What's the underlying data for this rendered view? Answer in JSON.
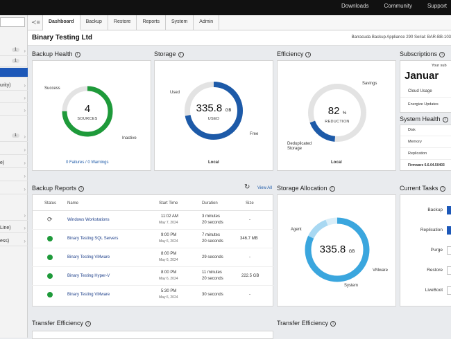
{
  "topbar": {
    "links": [
      "Downloads",
      "Community",
      "Support"
    ]
  },
  "sidebar": {
    "items": [
      {
        "label": "",
        "badge": "1"
      },
      {
        "label": "",
        "badge": "1"
      },
      {
        "label": "",
        "badge": ""
      },
      {
        "label": "urity)",
        "badge": ""
      },
      {
        "label": "",
        "badge": ""
      },
      {
        "label": "",
        "badge": ""
      },
      {
        "label": "",
        "badge": "1"
      },
      {
        "label": "",
        "badge": ""
      },
      {
        "label": "e)",
        "badge": ""
      },
      {
        "label": "",
        "badge": ""
      },
      {
        "label": "",
        "badge": ""
      },
      {
        "label": "",
        "badge": ""
      },
      {
        "label": "Line)",
        "badge": ""
      },
      {
        "label": "ess)",
        "badge": ""
      }
    ]
  },
  "tabs": [
    "Dashboard",
    "Backup",
    "Restore",
    "Reports",
    "System",
    "Admin"
  ],
  "page": {
    "title": "Binary Testing Ltd",
    "device": "Barracuda Backup Appliance 290  Serial:  BAR-BB-103"
  },
  "backup_health": {
    "title": "Backup Health",
    "value": "4",
    "sublabel": "SOURCES",
    "success_label": "Success",
    "inactive_label": "Inactive",
    "summary": "0 Failures / 0 Warnings",
    "success_fraction": 0.75,
    "color": "#1e9a3a"
  },
  "storage": {
    "title": "Storage",
    "value": "335.8",
    "unit": "GB",
    "sublabel": "USED",
    "used_label": "Used",
    "free_label": "Free",
    "footer": "Local",
    "used_fraction": 0.72,
    "color": "#1d5aa8"
  },
  "efficiency": {
    "title": "Efficiency",
    "value": "82",
    "unit": "%",
    "sublabel": "REDUCTION",
    "savings_label": "Savings",
    "dedup_label_1": "Deduplicated",
    "dedup_label_2": "Storage",
    "footer": "Local",
    "dedup_fraction": 0.18,
    "color": "#1d5aa8"
  },
  "subscriptions": {
    "title": "Subscriptions",
    "caption": "Your sub",
    "month": "Januar",
    "items": [
      "Cloud Usage",
      "Energize Updates"
    ]
  },
  "system_health": {
    "title": "System Health",
    "items": [
      "Disk",
      "Memory",
      "Replication",
      "Firmware 6.6.04.50403"
    ]
  },
  "backup_reports": {
    "title": "Backup Reports",
    "view_all": "View All",
    "columns": [
      "Status",
      "Name",
      "Start Time",
      "Duration",
      "Size"
    ],
    "rows": [
      {
        "status": "running",
        "name": "Windows Workstations",
        "time": "11:02 AM",
        "date": "May 7, 2024",
        "duration_1": "3 minutes",
        "duration_2": "20 seconds",
        "size": "-"
      },
      {
        "status": "ok",
        "name": "Binary Testing SQL Servers",
        "time": "9:00 PM",
        "date": "May 6, 2024",
        "duration_1": "7 minutes",
        "duration_2": "20 seconds",
        "size": "346.7 MB"
      },
      {
        "status": "ok",
        "name": "Binary Testing VMware",
        "time": "8:00 PM",
        "date": "May 6, 2024",
        "duration_1": "29 seconds",
        "duration_2": "",
        "size": "-"
      },
      {
        "status": "ok",
        "name": "Binary Testing Hyper-V",
        "time": "8:00 PM",
        "date": "May 6, 2024",
        "duration_1": "11 minutes",
        "duration_2": "20 seconds",
        "size": "222.5 GB"
      },
      {
        "status": "ok",
        "name": "Binary Testing VMware",
        "time": "5:30 PM",
        "date": "May 6, 2024",
        "duration_1": "30 seconds",
        "duration_2": "",
        "size": "-"
      }
    ]
  },
  "storage_allocation": {
    "title": "Storage Allocation",
    "value": "335.8",
    "unit": "GB",
    "agent_label": "Agent",
    "vmware_label": "VMware",
    "system_label": "System",
    "agent_fraction": 0.82,
    "vmware_fraction": 0.12,
    "system_fraction": 0.06,
    "color_agent": "#3aa6de",
    "color_vmware": "#a8d8f2",
    "color_system": "#d9eef9"
  },
  "current_tasks": {
    "title": "Current Tasks",
    "items": [
      "Backup",
      "Replication",
      "Purge",
      "Restore",
      "LiveBoot"
    ]
  },
  "transfer_efficiency": {
    "title": "Transfer Efficiency"
  }
}
